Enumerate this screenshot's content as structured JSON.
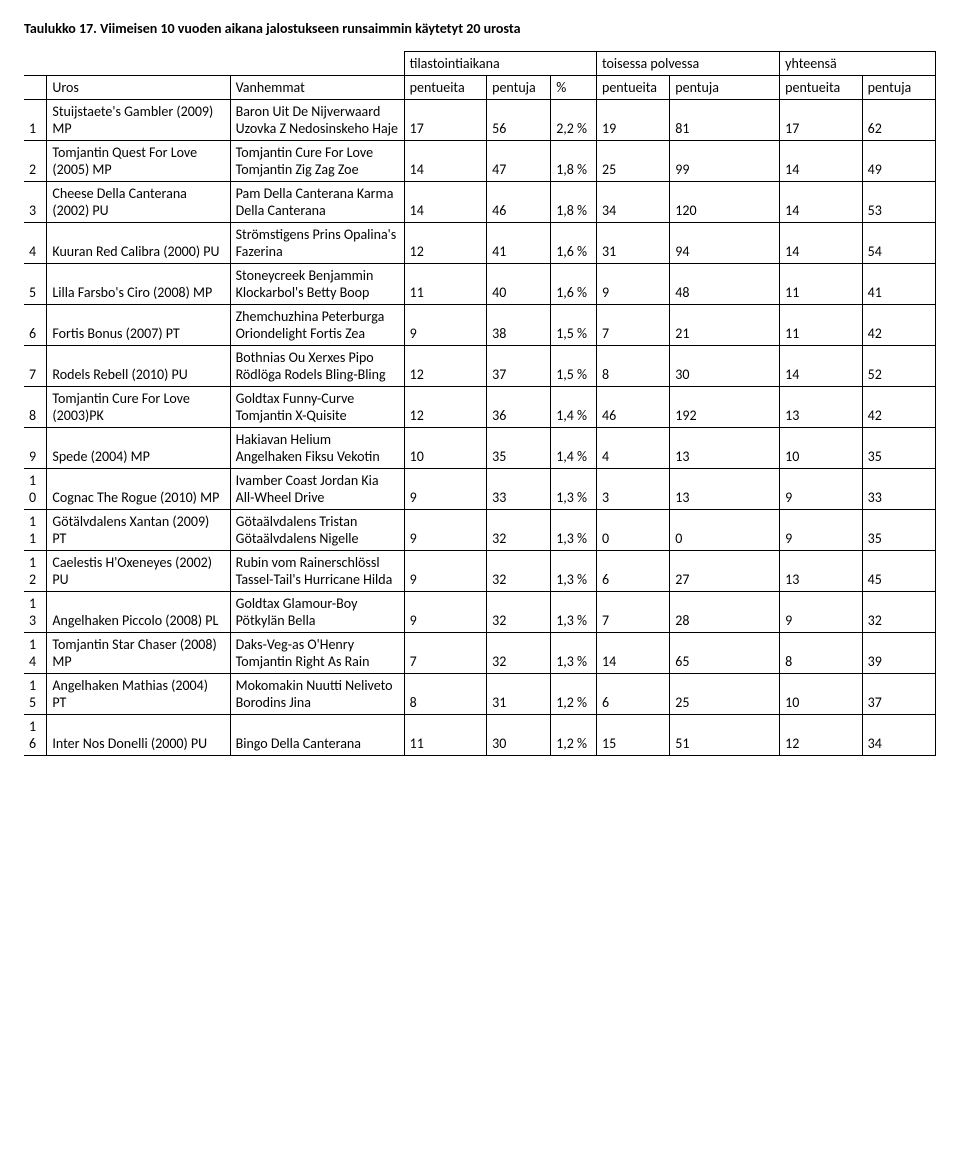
{
  "title": "Taulukko 17. Viimeisen 10 vuoden aikana jalostukseen runsaimmin käytetyt 20 urosta",
  "headers": {
    "h_tilast": "tilastointiaikana",
    "h_toisessa": "toisessa polvessa",
    "h_yhteensa": "yhteensä",
    "c_uros": "Uros",
    "c_vanh": "Vanhemmat",
    "c_pentueita": "pentueita",
    "c_pentuja": "pentuja",
    "c_pct": "%",
    "c_pentueita2": "pentueita",
    "c_pentuja2": "pentuja",
    "c_pentueita3": "pentueita",
    "c_pentuja3": "pentuja"
  },
  "rows": [
    {
      "n": "1",
      "uros": "Stuijstaete's Gambler (2009) MP",
      "vanh": "Baron Uit De Nijverwaard Uzovka Z Nedosinskeho Haje",
      "a": "17",
      "b": "56",
      "pct": "2,2 %",
      "c": "19",
      "d": "81",
      "e": "17",
      "f": "62"
    },
    {
      "n": "2",
      "uros": "Tomjantin Quest For Love (2005) MP",
      "vanh": "Tomjantin Cure For Love       Tomjantin Zig Zag Zoe",
      "a": "14",
      "b": "47",
      "pct": "1,8 %",
      "c": "25",
      "d": "99",
      "e": "14",
      "f": "49"
    },
    {
      "n": "3",
      "uros": "Cheese Della Canterana (2002) PU",
      "vanh": "Pam Della Canterana Karma Della Canterana",
      "a": "14",
      "b": "46",
      "pct": "1,8 %",
      "c": "34",
      "d": "120",
      "e": "14",
      "f": "53"
    },
    {
      "n": "4",
      "uros": "Kuuran Red Calibra (2000) PU",
      "vanh": "Strömstigens Prins Opalina's Fazerina",
      "a": "12",
      "b": "41",
      "pct": "1,6 %",
      "c": "31",
      "d": "94",
      "e": "14",
      "f": "54"
    },
    {
      "n": "5",
      "uros": "Lilla Farsbo's Ciro (2008) MP",
      "vanh": "Stoneycreek Benjammin Klockarbol's Betty Boop",
      "a": "11",
      "b": "40",
      "pct": "1,6 %",
      "c": "9",
      "d": "48",
      "e": "11",
      "f": "41"
    },
    {
      "n": "6",
      "uros": "Fortis Bonus (2007) PT",
      "vanh": "Zhemchuzhina Peterburga Oriondelight Fortis Zea",
      "a": "9",
      "b": "38",
      "pct": "1,5 %",
      "c": "7",
      "d": "21",
      "e": "11",
      "f": "42"
    },
    {
      "n": "7",
      "uros": "Rodels Rebell (2010) PU",
      "vanh": "Bothnias Ou Xerxes Pipo Rödlöga Rodels Bling-Bling",
      "a": "12",
      "b": "37",
      "pct": "1,5 %",
      "c": "8",
      "d": "30",
      "e": "14",
      "f": "52"
    },
    {
      "n": "8",
      "uros": "Tomjantin Cure For Love (2003)PK",
      "vanh": "Goldtax Funny-Curve Tomjantin X-Quisite",
      "a": "12",
      "b": "36",
      "pct": "1,4 %",
      "c": "46",
      "d": "192",
      "e": "13",
      "f": "42"
    },
    {
      "n": "9",
      "uros": "Spede (2004) MP",
      "vanh": "Hakiavan Helium Angelhaken Fiksu Vekotin",
      "a": "10",
      "b": "35",
      "pct": "1,4 %",
      "c": "4",
      "d": "13",
      "e": "10",
      "f": "35"
    },
    {
      "n": "10",
      "uros": "Cognac The Rogue (2010) MP",
      "vanh": "Ivamber Coast Jordan Kia All-Wheel Drive",
      "a": "9",
      "b": "33",
      "pct": "1,3 %",
      "c": "3",
      "d": "13",
      "e": "9",
      "f": "33"
    },
    {
      "n": "11",
      "uros": "Götälvdalens Xantan (2009) PT",
      "vanh": "Götaälvdalens Tristan Götaälvdalens Nigelle",
      "a": "9",
      "b": "32",
      "pct": "1,3 %",
      "c": "0",
      "d": "0",
      "e": "9",
      "f": "35"
    },
    {
      "n": "12",
      "uros": "Caelestis H'Oxeneyes (2002) PU",
      "vanh": "Rubin vom Rainerschlössl Tassel-Tail's Hurricane Hilda",
      "a": "9",
      "b": "32",
      "pct": "1,3 %",
      "c": "6",
      "d": "27",
      "e": "13",
      "f": "45"
    },
    {
      "n": "13",
      "uros": "Angelhaken Piccolo (2008) PL",
      "vanh": "Goldtax Glamour-Boy Pötkylän Bella",
      "a": "9",
      "b": "32",
      "pct": "1,3 %",
      "c": "7",
      "d": "28",
      "e": "9",
      "f": "32"
    },
    {
      "n": "14",
      "uros": "Tomjantin Star Chaser (2008) MP",
      "vanh": "Daks-Veg-as O'Henry Tomjantin Right As Rain",
      "a": "7",
      "b": "32",
      "pct": "1,3 %",
      "c": "14",
      "d": "65",
      "e": "8",
      "f": "39"
    },
    {
      "n": "15",
      "uros": "Angelhaken Mathias (2004) PT",
      "vanh": "Mokomakin Nuutti Neliveto     Borodins Jina",
      "a": "8",
      "b": "31",
      "pct": "1,2 %",
      "c": "6",
      "d": "25",
      "e": "10",
      "f": "37"
    },
    {
      "n": "16",
      "uros": "Inter Nos Donelli (2000) PU",
      "vanh": "Bingo Della Canterana",
      "a": "11",
      "b": "30",
      "pct": "1,2 %",
      "c": "15",
      "d": "51",
      "e": "12",
      "f": "34"
    }
  ]
}
